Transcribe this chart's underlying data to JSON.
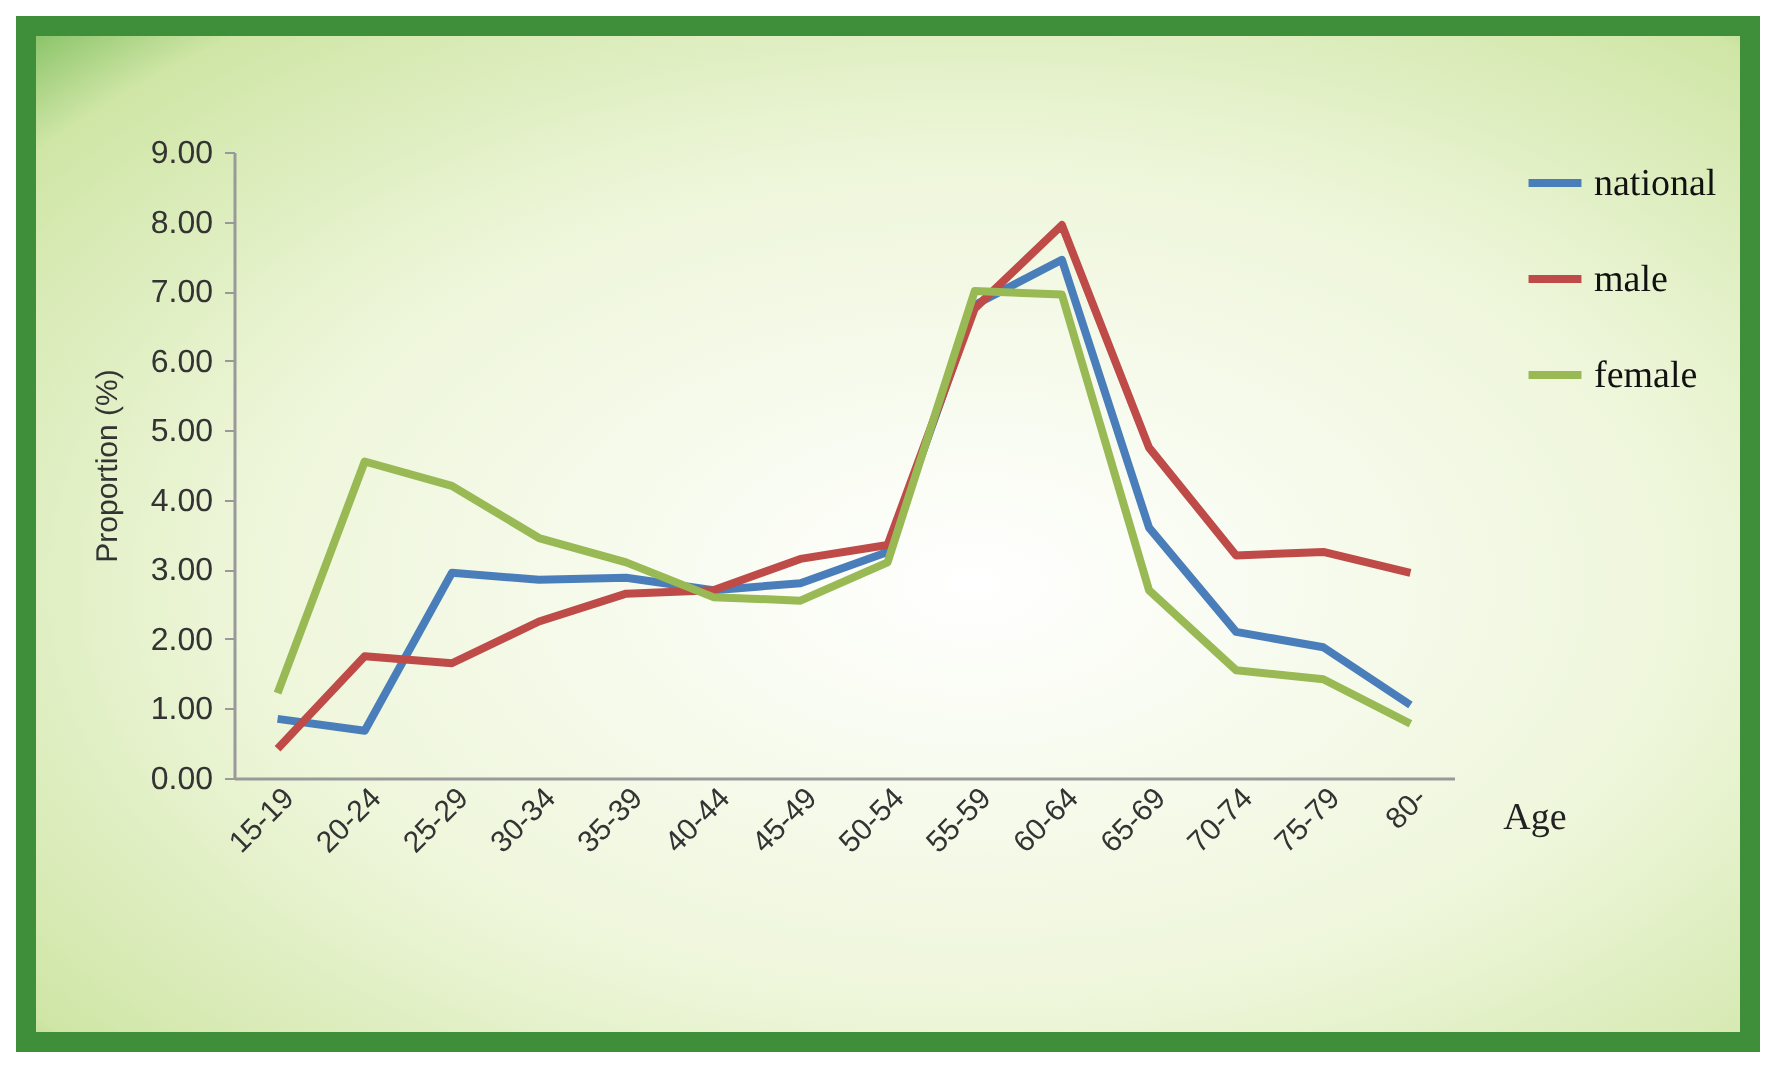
{
  "chart_data": {
    "type": "line",
    "xlabel": "Age",
    "ylabel": "Proportion  (%)",
    "categories": [
      "15-19",
      "20-24",
      "25-29",
      "30-34",
      "35-39",
      "40-44",
      "45-49",
      "50-54",
      "55-59",
      "60-64",
      "65-69",
      "70-74",
      "75-79",
      "80-"
    ],
    "ylim": [
      0,
      9
    ],
    "yticks": [
      {
        "value": 0,
        "label": "0.00"
      },
      {
        "value": 1,
        "label": "1.00"
      },
      {
        "value": 2,
        "label": "2.00"
      },
      {
        "value": 3,
        "label": "3.00"
      },
      {
        "value": 4,
        "label": "4.00"
      },
      {
        "value": 5,
        "label": "5.00"
      },
      {
        "value": 6,
        "label": "6.00"
      },
      {
        "value": 7,
        "label": "7.00"
      },
      {
        "value": 8,
        "label": "8.00"
      },
      {
        "value": 9,
        "label": "9.00"
      }
    ],
    "grid": false,
    "legend": "right",
    "marker": "none",
    "line_style": "solid",
    "series": [
      {
        "name": "national",
        "color": "#4a7ebb",
        "values": [
          0.85,
          0.68,
          2.95,
          2.85,
          2.88,
          2.7,
          2.8,
          3.25,
          6.8,
          7.45,
          3.6,
          2.1,
          1.88,
          1.05
        ]
      },
      {
        "name": "male",
        "color": "#be4b48",
        "values": [
          0.42,
          1.75,
          1.65,
          2.25,
          2.65,
          2.7,
          3.15,
          3.35,
          6.75,
          7.95,
          4.75,
          3.2,
          3.25,
          2.95
        ]
      },
      {
        "name": "female",
        "color": "#98b954",
        "values": [
          1.22,
          4.55,
          4.2,
          3.45,
          3.1,
          2.6,
          2.55,
          3.1,
          7.0,
          6.95,
          2.7,
          1.55,
          1.42,
          0.78
        ]
      }
    ]
  }
}
